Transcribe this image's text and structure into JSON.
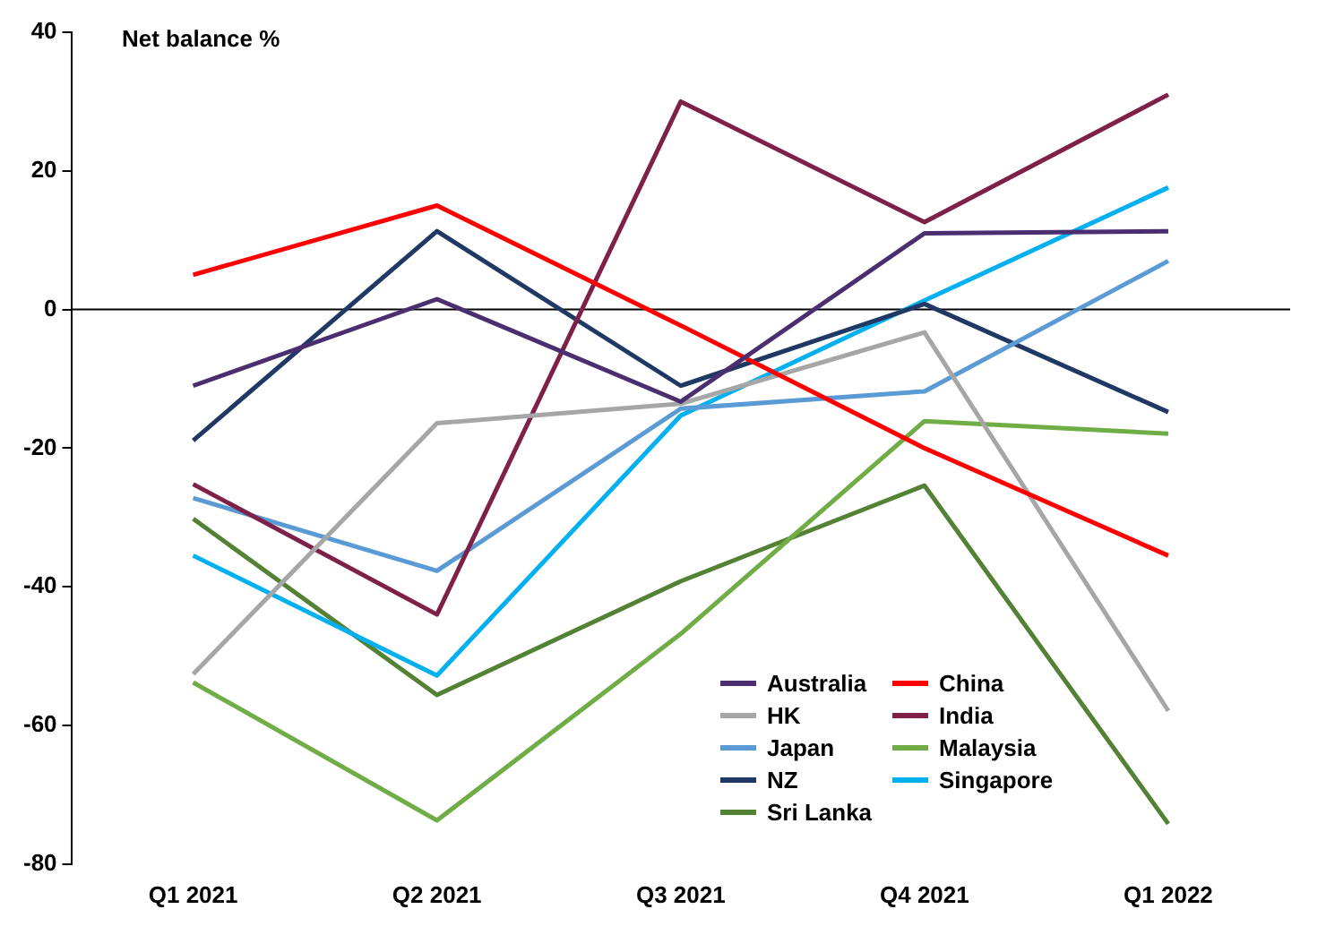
{
  "chart_data": {
    "type": "line",
    "ylabel": "Net balance %",
    "categories": [
      "Q1 2021",
      "Q2 2021",
      "Q3 2021",
      "Q4 2021",
      "Q1 2022"
    ],
    "ylim": [
      -80,
      40
    ],
    "yticks": [
      -80,
      -60,
      -40,
      -20,
      0,
      20,
      40
    ],
    "grid": false,
    "ref_lines": [
      {
        "axis": "y",
        "value": 0,
        "color": "#000000"
      }
    ],
    "legend": "bottom right",
    "marker": "none",
    "line_style": "solid",
    "series": [
      {
        "name": "Australia",
        "color": "#4b2e6f",
        "values": [
          -11,
          1.5,
          -13.3,
          11,
          11.3
        ]
      },
      {
        "name": "China",
        "color": "#ff0000",
        "values": [
          5,
          15,
          -2.3,
          -20,
          -35.5
        ]
      },
      {
        "name": "HK",
        "color": "#a6a6a6",
        "values": [
          -52.6,
          -16.4,
          -13.6,
          -3.3,
          -57.9
        ]
      },
      {
        "name": "India",
        "color": "#7f2048",
        "values": [
          -25.2,
          -44,
          30,
          12.6,
          31
        ]
      },
      {
        "name": "Japan",
        "color": "#5b9bd5",
        "values": [
          -27.2,
          -37.7,
          -14.3,
          -11.8,
          7
        ]
      },
      {
        "name": "Malaysia",
        "color": "#70ad47",
        "values": [
          -53.8,
          -73.7,
          -46.8,
          -16.1,
          -17.9
        ]
      },
      {
        "name": "NZ",
        "color": "#1f3864",
        "values": [
          -18.9,
          11.3,
          -11,
          0.8,
          -14.8
        ]
      },
      {
        "name": "Singapore",
        "color": "#00b0f0",
        "values": [
          -35.5,
          -52.8,
          -15.3,
          1.3,
          17.6
        ]
      },
      {
        "name": "Sri Lanka",
        "color": "#548235",
        "values": [
          -30.2,
          -55.6,
          -39.2,
          -25.4,
          -74.2
        ]
      }
    ]
  }
}
